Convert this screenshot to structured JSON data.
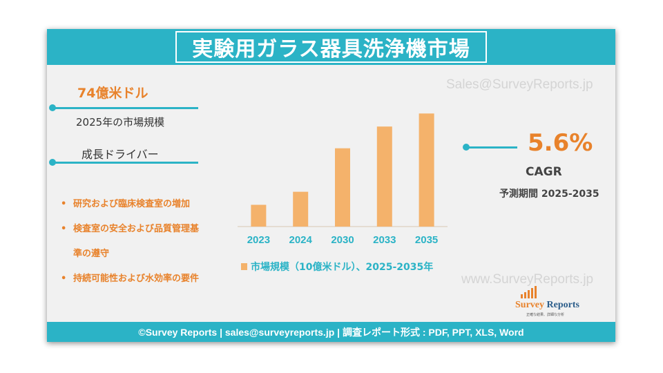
{
  "title": "実験用ガラス器具洗浄機市場",
  "watermarks": {
    "top": "Sales@SurveyReports.jp",
    "bottom": "www.SurveyReports.jp"
  },
  "market": {
    "value": "74億米ドル",
    "label": "2025年の市場規模"
  },
  "drivers": {
    "title": "成長ドライバー",
    "bullet_symbol": "•",
    "items": [
      "研究および臨床検査室の増加",
      "検査室の安全および品質管理基",
      "準の遵守",
      "持続可能性および水効率の要件"
    ]
  },
  "cagr": {
    "value": "5.6%",
    "label": "CAGR",
    "period": "予測期間 2025-2035"
  },
  "chart_data": {
    "type": "bar",
    "categories": [
      "2023",
      "2024",
      "2030",
      "2033",
      "2035"
    ],
    "values": [
      2.5,
      4.0,
      9.0,
      11.5,
      13.0
    ],
    "series": [
      {
        "name": "市場規模（10億米ドル）、2025-2035年",
        "values": [
          2.5,
          4.0,
          9.0,
          11.5,
          13.0
        ]
      }
    ],
    "ylim": [
      0,
      13.5
    ],
    "bar_color": "#f4b26b",
    "grid": false,
    "legend_position": "bottom"
  },
  "logo": {
    "name_part1": "Survey",
    "name_part2": "Reports",
    "tagline": "正確な結果、詳細な分析"
  },
  "footer": "©Survey Reports | sales@surveyreports.jp | 調査レポート形式 : PDF, PPT, XLS, Word",
  "colors": {
    "accent": "#2bb3c6",
    "highlight": "#e8822b",
    "bar": "#f4b26b"
  }
}
